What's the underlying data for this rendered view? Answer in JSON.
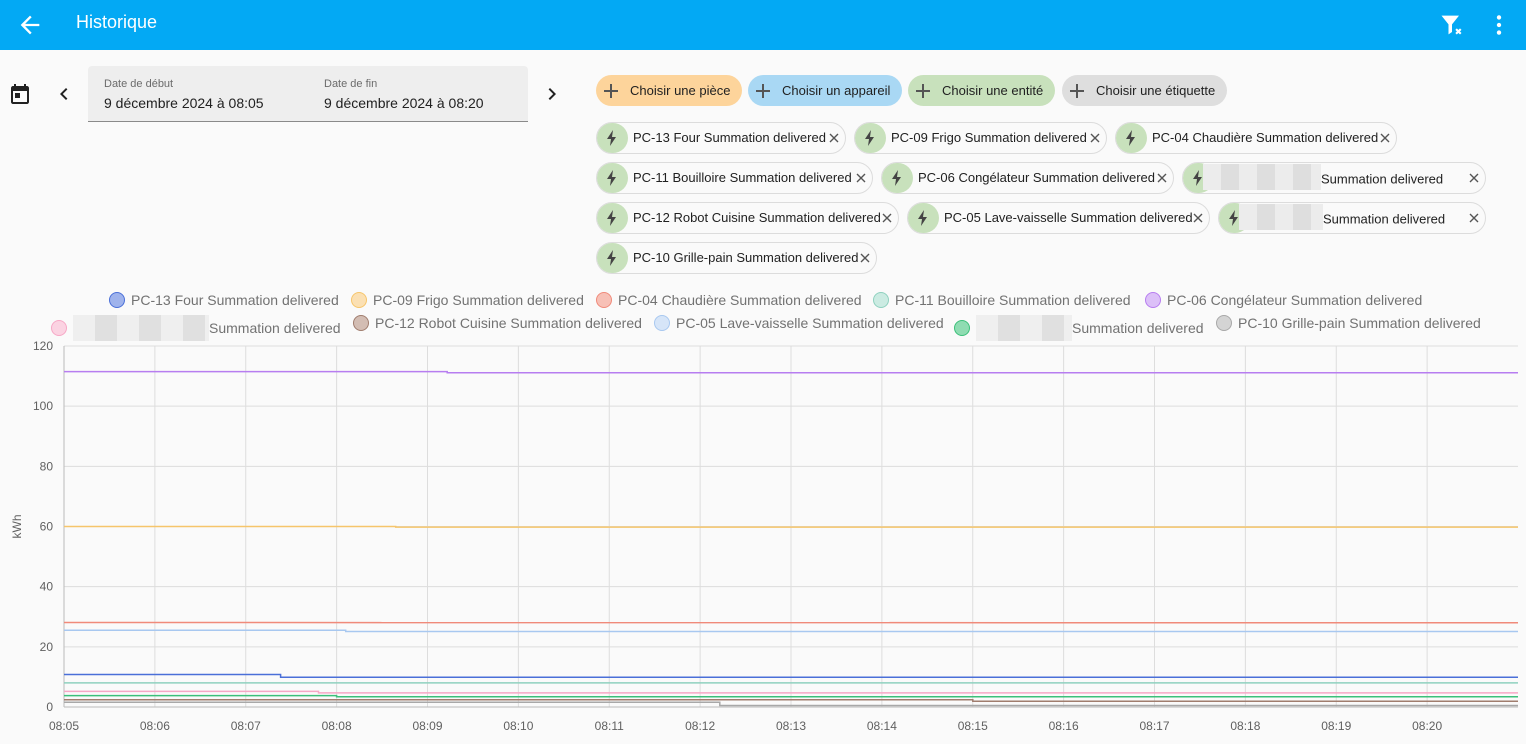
{
  "header": {
    "title": "Historique",
    "back_icon": "arrow-left-icon",
    "filter_icon": "filter-remove-icon",
    "menu_icon": "dots-vertical-icon"
  },
  "dates": {
    "start_label": "Date de début",
    "start_value": "9 décembre 2024 à 08:05",
    "end_label": "Date de fin",
    "end_value": "9 décembre 2024 à 08:20"
  },
  "pickers": {
    "area": {
      "label": "Choisir une pièce",
      "color": "#fdd49b"
    },
    "device": {
      "label": "Choisir un appareil",
      "color": "#a9d8f4"
    },
    "entity": {
      "label": "Choisir une entité",
      "color": "#c8e1bc"
    },
    "label": {
      "label": "Choisir une étiquette",
      "color": "#dedede"
    }
  },
  "chips": [
    {
      "label": "PC-13 Four Summation delivered"
    },
    {
      "label": "PC-09 Frigo Summation delivered"
    },
    {
      "label": "PC-04 Chaudière Summation delivered"
    },
    {
      "label": "PC-11 Bouilloire Summation delivered"
    },
    {
      "label": "PC-06 Congélateur Summation delivered"
    },
    {
      "label": "Summation delivered"
    },
    {
      "label": "PC-12 Robot Cuisine Summation delivered"
    },
    {
      "label": "PC-05 Lave-vaisselle Summation delivered"
    },
    {
      "label": "Summation delivered"
    },
    {
      "label": "PC-10 Grille-pain Summation delivered"
    }
  ],
  "chart_data": {
    "type": "line",
    "ylabel": "kWh",
    "ylim": [
      0,
      120
    ],
    "yticks": [
      0,
      20,
      40,
      60,
      80,
      100,
      120
    ],
    "xlim": [
      "08:05",
      "08:21"
    ],
    "xticks": [
      "08:05",
      "08:06",
      "08:07",
      "08:08",
      "08:09",
      "08:10",
      "08:11",
      "08:12",
      "08:13",
      "08:14",
      "08:15",
      "08:16",
      "08:17",
      "08:18",
      "08:19",
      "08:20"
    ],
    "grid": true,
    "legend_position": "top",
    "series": [
      {
        "name": "PC-13 Four Summation delivered",
        "color": "#4a6fd8",
        "points": [
          [
            "08:05",
            10.8
          ],
          [
            "08:07:23",
            10.8
          ],
          [
            "08:07:23",
            9.9
          ],
          [
            "08:21",
            9.9
          ]
        ]
      },
      {
        "name": "PC-09 Frigo Summation delivered",
        "color": "#f6c56b",
        "points": [
          [
            "08:05",
            60.0
          ],
          [
            "08:08:39",
            60.0
          ],
          [
            "08:08:39",
            59.8
          ],
          [
            "08:21",
            59.8
          ]
        ]
      },
      {
        "name": "PC-04 Chaudière Summation delivered",
        "color": "#f08a7a",
        "points": [
          [
            "08:05",
            28.1
          ],
          [
            "08:21",
            28.0
          ]
        ]
      },
      {
        "name": "PC-11 Bouilloire Summation delivered",
        "color": "#8fd1bf",
        "points": [
          [
            "08:05",
            8.0
          ],
          [
            "08:21",
            8.0
          ]
        ]
      },
      {
        "name": "PC-06 Congélateur Summation delivered",
        "color": "#b77df0",
        "points": [
          [
            "08:05",
            111.5
          ],
          [
            "08:09:13",
            111.5
          ],
          [
            "08:09:13",
            111.1
          ],
          [
            "08:21",
            111.1
          ]
        ]
      },
      {
        "name": "Summation delivered",
        "color": "#f7a8c6",
        "points": [
          [
            "08:05",
            5.2
          ],
          [
            "08:07:48",
            5.2
          ],
          [
            "08:07:48",
            4.7
          ],
          [
            "08:21",
            4.7
          ]
        ]
      },
      {
        "name": "PC-12 Robot Cuisine Summation delivered",
        "color": "#a07d6e",
        "points": [
          [
            "08:05",
            2.4
          ],
          [
            "08:15",
            2.4
          ],
          [
            "08:15",
            1.9
          ],
          [
            "08:21",
            1.9
          ]
        ]
      },
      {
        "name": "PC-05 Lave-vaisselle Summation delivered",
        "color": "#a8c8f0",
        "points": [
          [
            "08:05",
            25.5
          ],
          [
            "08:08:06",
            25.5
          ],
          [
            "08:08:06",
            25.1
          ],
          [
            "08:21",
            25.1
          ]
        ]
      },
      {
        "name": "Summation delivered",
        "color": "#3cc07a",
        "points": [
          [
            "08:05",
            3.8
          ],
          [
            "08:08",
            3.8
          ],
          [
            "08:08",
            3.4
          ],
          [
            "08:21",
            3.4
          ]
        ]
      },
      {
        "name": "PC-10 Grille-pain Summation delivered",
        "color": "#a8a8a8",
        "points": [
          [
            "08:05",
            1.6
          ],
          [
            "08:12:13",
            1.6
          ],
          [
            "08:12:13",
            0.5
          ],
          [
            "08:21",
            0.5
          ]
        ]
      }
    ]
  }
}
